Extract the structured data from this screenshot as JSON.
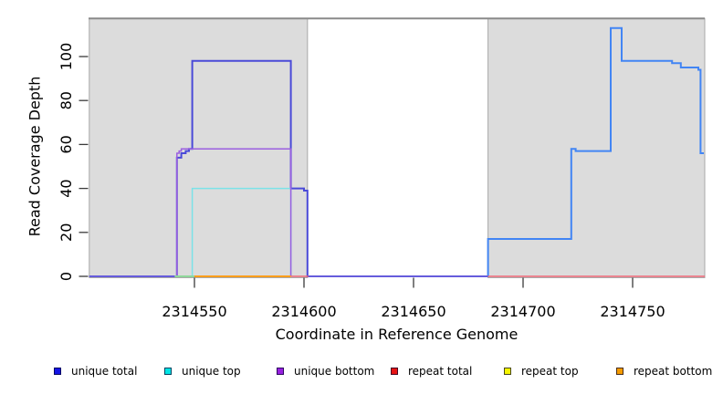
{
  "chart_data": {
    "type": "line",
    "subtype": "step-coverage",
    "title": "",
    "xlabel": "Coordinate in Reference Genome",
    "ylabel": "Read Coverage Depth",
    "xlim": [
      2314502,
      2314783
    ],
    "ylim": [
      0,
      117
    ],
    "x_ticks": [
      2314550,
      2314600,
      2314650,
      2314700,
      2314750
    ],
    "y_ticks": [
      0,
      20,
      40,
      60,
      80,
      100
    ],
    "grid": false,
    "legend_position": "bottom",
    "colors": {
      "plot_fill": "#dcdcdc",
      "region_border": "#a8a8a8",
      "top_line": "#8a8a8a",
      "tick": "#3a3a3a"
    },
    "shaded_regions": [
      {
        "x1": 2314502,
        "x2": 2314601.6
      },
      {
        "x1": 2314684,
        "x2": 2314783
      }
    ],
    "series": [
      {
        "name": "unique total",
        "legend_color": "#1414e6",
        "width": 2,
        "segments": [
          {
            "draw_color": "#4a4ad8",
            "points": [
              [
                2314502,
                0
              ],
              [
                2314542,
                0
              ],
              [
                2314542,
                54
              ],
              [
                2314544,
                54
              ],
              [
                2314544,
                56
              ],
              [
                2314546,
                56
              ],
              [
                2314546,
                57
              ],
              [
                2314547.5,
                57
              ],
              [
                2314547.5,
                58
              ],
              [
                2314549,
                58
              ],
              [
                2314549,
                98
              ],
              [
                2314594,
                98
              ],
              [
                2314594,
                40
              ],
              [
                2314600,
                40
              ],
              [
                2314600,
                39
              ],
              [
                2314601.6,
                39
              ],
              [
                2314601.6,
                0
              ],
              [
                2314684,
                0
              ]
            ]
          },
          {
            "draw_color": "#4285f4",
            "points": [
              [
                2314684,
                0
              ],
              [
                2314684,
                17
              ],
              [
                2314722,
                17
              ],
              [
                2314722,
                58
              ],
              [
                2314724,
                58
              ],
              [
                2314724,
                57
              ],
              [
                2314740,
                57
              ],
              [
                2314740,
                113
              ],
              [
                2314745,
                113
              ],
              [
                2314745,
                98
              ],
              [
                2314768,
                98
              ],
              [
                2314768,
                97
              ],
              [
                2314772,
                97
              ],
              [
                2314772,
                95
              ],
              [
                2314780,
                95
              ],
              [
                2314780,
                94
              ],
              [
                2314781,
                94
              ],
              [
                2314781,
                56
              ],
              [
                2314782.5,
                56
              ]
            ]
          }
        ]
      },
      {
        "name": "unique top",
        "legend_color": "#00e5e5",
        "width": 1.5,
        "segments": [
          {
            "draw_color": "#7be2e8",
            "points": [
              [
                2314549,
                0
              ],
              [
                2314549,
                40
              ],
              [
                2314594,
                40
              ],
              [
                2314594,
                0
              ]
            ]
          }
        ]
      },
      {
        "name": "unique bottom",
        "legend_color": "#9820e0",
        "width": 1.5,
        "segments": [
          {
            "draw_color": "#6f62dd",
            "points": [
              [
                2314502,
                0
              ],
              [
                2314542,
                0
              ]
            ]
          },
          {
            "draw_color": "#6f62dd",
            "points": [
              [
                2314602,
                0
              ],
              [
                2314684,
                0
              ]
            ]
          },
          {
            "draw_color": "#9b5fe0",
            "points": [
              [
                2314542,
                0
              ],
              [
                2314542,
                56
              ],
              [
                2314543,
                56
              ],
              [
                2314543,
                57
              ],
              [
                2314544,
                57
              ],
              [
                2314544,
                58
              ],
              [
                2314594,
                58
              ],
              [
                2314594,
                0
              ]
            ]
          }
        ]
      },
      {
        "name": "repeat total",
        "legend_color": "#e61414",
        "width": 1.5,
        "segments": [
          {
            "draw_color": "#ee6677",
            "points": [
              [
                2314594,
                0
              ],
              [
                2314602,
                0
              ]
            ]
          },
          {
            "draw_color": "#ee6677",
            "points": [
              [
                2314684,
                0
              ],
              [
                2314783,
                0
              ]
            ]
          }
        ]
      },
      {
        "name": "repeat top",
        "legend_color": "#f5f500",
        "width": 2,
        "segments": [
          {
            "draw_color": "#8fd79a",
            "points": [
              [
                2314541,
                0
              ],
              [
                2314550,
                0
              ]
            ]
          }
        ]
      },
      {
        "name": "repeat bottom",
        "legend_color": "#f59b00",
        "width": 2,
        "segments": [
          {
            "draw_color": "#ff9e1b",
            "points": [
              [
                2314550,
                0
              ],
              [
                2314594,
                0
              ]
            ]
          }
        ]
      }
    ]
  },
  "legend": {
    "items": [
      {
        "label": "unique total",
        "color": "#1414e6"
      },
      {
        "label": "unique top",
        "color": "#00e5e5"
      },
      {
        "label": "unique bottom",
        "color": "#9820e0"
      },
      {
        "label": "repeat total",
        "color": "#e61414"
      },
      {
        "label": "repeat top",
        "color": "#f5f500"
      },
      {
        "label": "repeat bottom",
        "color": "#f59b00"
      }
    ]
  }
}
